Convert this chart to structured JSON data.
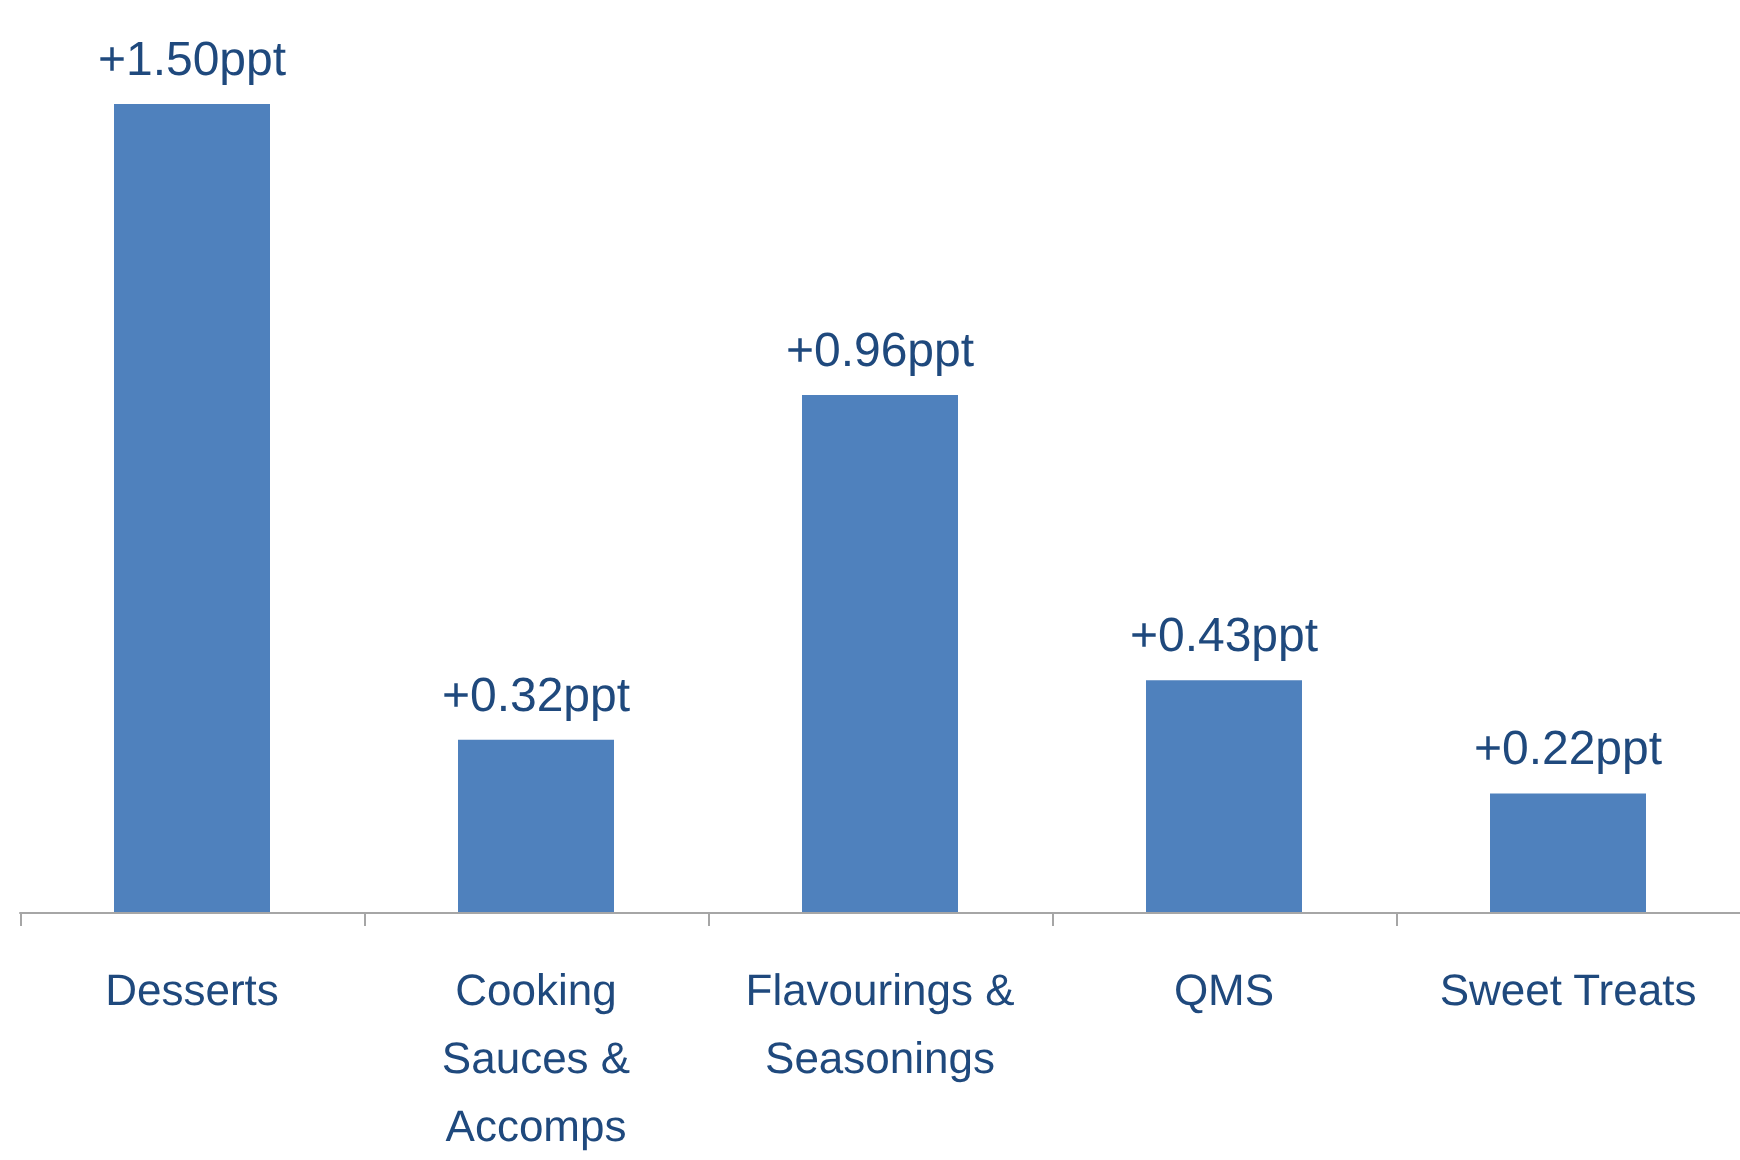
{
  "chart_data": {
    "type": "bar",
    "categories": [
      "Desserts",
      "Cooking Sauces & Accomps",
      "Flavourings & Seasonings",
      "QMS",
      "Sweet Treats"
    ],
    "values": [
      1.5,
      0.32,
      0.96,
      0.43,
      0.22
    ],
    "value_labels": [
      "+1.50ppt",
      "+0.32ppt",
      "+0.96ppt",
      "+0.43ppt",
      "+0.22ppt"
    ],
    "color": "#4f81bd"
  }
}
